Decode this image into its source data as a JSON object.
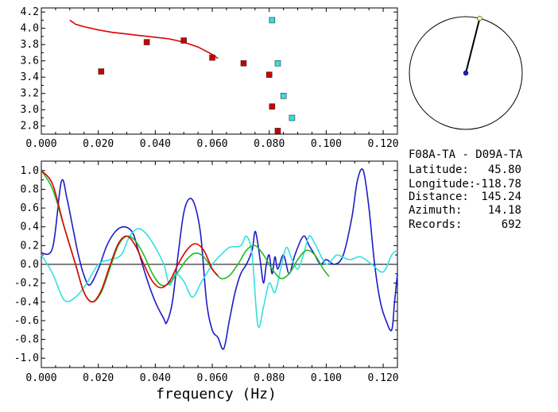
{
  "chart_data": [
    {
      "type": "scatter",
      "xlim": [
        0.0,
        0.125
      ],
      "ylim": [
        2.7,
        4.25
      ],
      "xticks": [
        "0.000",
        "0.020",
        "0.040",
        "0.060",
        "0.080",
        "0.100",
        "0.120"
      ],
      "yticks": [
        "2.8",
        "3.0",
        "3.2",
        "3.4",
        "3.6",
        "3.8",
        "4.0",
        "4.2"
      ],
      "red_points": [
        [
          0.021,
          3.47
        ],
        [
          0.037,
          3.83
        ],
        [
          0.05,
          3.85
        ],
        [
          0.06,
          3.64
        ],
        [
          0.071,
          3.57
        ],
        [
          0.08,
          3.43
        ],
        [
          0.081,
          3.04
        ],
        [
          0.083,
          2.74
        ]
      ],
      "cyan_points": [
        [
          0.081,
          4.1
        ],
        [
          0.083,
          3.57
        ],
        [
          0.085,
          3.17
        ],
        [
          0.088,
          2.9
        ]
      ],
      "curve": [
        [
          0.01,
          4.1
        ],
        [
          0.012,
          4.05
        ],
        [
          0.015,
          4.02
        ],
        [
          0.02,
          3.98
        ],
        [
          0.025,
          3.95
        ],
        [
          0.03,
          3.93
        ],
        [
          0.035,
          3.91
        ],
        [
          0.04,
          3.89
        ],
        [
          0.045,
          3.87
        ],
        [
          0.05,
          3.83
        ],
        [
          0.055,
          3.77
        ],
        [
          0.06,
          3.68
        ],
        [
          0.062,
          3.63
        ]
      ],
      "colors": {
        "red": "#cc0000",
        "cyan": "#33dddd",
        "curve": "#dd0000"
      }
    },
    {
      "type": "line",
      "xlim": [
        0.0,
        0.125
      ],
      "ylim": [
        -1.1,
        1.1
      ],
      "xticks": [
        "0.000",
        "0.020",
        "0.040",
        "0.060",
        "0.080",
        "0.100",
        "0.120"
      ],
      "yticks": [
        "1.0",
        "0.8",
        "0.6",
        "0.4",
        "0.2",
        "0.0",
        "-0.2",
        "-0.4",
        "-0.6",
        "-0.8",
        "-1.0"
      ],
      "xlabel": "frequency (Hz)",
      "zero_line": true,
      "series": [
        {
          "color": "#1c1cc8",
          "values": [
            [
              0.0,
              0.12
            ],
            [
              0.004,
              0.18
            ],
            [
              0.007,
              0.88
            ],
            [
              0.009,
              0.7
            ],
            [
              0.011,
              0.4
            ],
            [
              0.013,
              0.1
            ],
            [
              0.015,
              -0.12
            ],
            [
              0.017,
              -0.22
            ],
            [
              0.02,
              -0.05
            ],
            [
              0.023,
              0.2
            ],
            [
              0.026,
              0.35
            ],
            [
              0.029,
              0.4
            ],
            [
              0.032,
              0.34
            ],
            [
              0.034,
              0.15
            ],
            [
              0.037,
              -0.15
            ],
            [
              0.04,
              -0.4
            ],
            [
              0.043,
              -0.58
            ],
            [
              0.044,
              -0.62
            ],
            [
              0.046,
              -0.4
            ],
            [
              0.048,
              0.1
            ],
            [
              0.05,
              0.55
            ],
            [
              0.052,
              0.7
            ],
            [
              0.054,
              0.62
            ],
            [
              0.056,
              0.3
            ],
            [
              0.058,
              -0.4
            ],
            [
              0.06,
              -0.7
            ],
            [
              0.062,
              -0.78
            ],
            [
              0.064,
              -0.9
            ],
            [
              0.066,
              -0.6
            ],
            [
              0.068,
              -0.3
            ],
            [
              0.07,
              -0.1
            ],
            [
              0.072,
              0.0
            ],
            [
              0.074,
              0.15
            ],
            [
              0.075,
              0.35
            ],
            [
              0.076,
              0.22
            ],
            [
              0.077,
              0.0
            ],
            [
              0.078,
              -0.2
            ],
            [
              0.079,
              0.0
            ],
            [
              0.08,
              0.1
            ],
            [
              0.081,
              -0.1
            ],
            [
              0.082,
              0.08
            ],
            [
              0.083,
              -0.05
            ],
            [
              0.085,
              0.1
            ],
            [
              0.087,
              -0.1
            ],
            [
              0.089,
              0.1
            ],
            [
              0.092,
              0.3
            ],
            [
              0.094,
              0.2
            ],
            [
              0.096,
              0.1
            ],
            [
              0.098,
              0.0
            ],
            [
              0.1,
              0.05
            ],
            [
              0.103,
              0.0
            ],
            [
              0.106,
              0.1
            ],
            [
              0.109,
              0.5
            ],
            [
              0.111,
              0.9
            ],
            [
              0.113,
              1.0
            ],
            [
              0.115,
              0.6
            ],
            [
              0.117,
              0.0
            ],
            [
              0.119,
              -0.4
            ],
            [
              0.121,
              -0.6
            ],
            [
              0.123,
              -0.7
            ],
            [
              0.124,
              -0.4
            ],
            [
              0.125,
              -0.1
            ]
          ]
        },
        {
          "color": "#33e0e0",
          "values": [
            [
              0.0,
              0.1
            ],
            [
              0.004,
              -0.1
            ],
            [
              0.008,
              -0.38
            ],
            [
              0.012,
              -0.35
            ],
            [
              0.016,
              -0.2
            ],
            [
              0.02,
              0.0
            ],
            [
              0.024,
              0.05
            ],
            [
              0.028,
              0.1
            ],
            [
              0.031,
              0.3
            ],
            [
              0.034,
              0.38
            ],
            [
              0.037,
              0.32
            ],
            [
              0.04,
              0.18
            ],
            [
              0.043,
              0.0
            ],
            [
              0.045,
              -0.22
            ],
            [
              0.047,
              -0.1
            ],
            [
              0.05,
              -0.18
            ],
            [
              0.053,
              -0.35
            ],
            [
              0.056,
              -0.2
            ],
            [
              0.058,
              -0.1
            ],
            [
              0.06,
              0.0
            ],
            [
              0.063,
              0.1
            ],
            [
              0.066,
              0.18
            ],
            [
              0.07,
              0.2
            ],
            [
              0.072,
              0.3
            ],
            [
              0.074,
              0.1
            ],
            [
              0.076,
              -0.65
            ],
            [
              0.078,
              -0.45
            ],
            [
              0.08,
              -0.2
            ],
            [
              0.082,
              -0.3
            ],
            [
              0.084,
              -0.05
            ],
            [
              0.086,
              0.18
            ],
            [
              0.088,
              0.05
            ],
            [
              0.09,
              -0.05
            ],
            [
              0.092,
              0.1
            ],
            [
              0.094,
              0.3
            ],
            [
              0.096,
              0.22
            ],
            [
              0.098,
              0.1
            ],
            [
              0.1,
              0.0
            ],
            [
              0.102,
              0.05
            ],
            [
              0.104,
              0.1
            ],
            [
              0.108,
              0.05
            ],
            [
              0.112,
              0.08
            ],
            [
              0.116,
              0.0
            ],
            [
              0.12,
              -0.08
            ],
            [
              0.123,
              0.1
            ],
            [
              0.125,
              0.15
            ]
          ]
        },
        {
          "color": "#22bb22",
          "values": [
            [
              0.0,
              1.0
            ],
            [
              0.004,
              0.8
            ],
            [
              0.008,
              0.4
            ],
            [
              0.012,
              0.0
            ],
            [
              0.015,
              -0.3
            ],
            [
              0.018,
              -0.4
            ],
            [
              0.021,
              -0.3
            ],
            [
              0.024,
              -0.05
            ],
            [
              0.027,
              0.2
            ],
            [
              0.03,
              0.3
            ],
            [
              0.033,
              0.25
            ],
            [
              0.036,
              0.1
            ],
            [
              0.039,
              -0.1
            ],
            [
              0.042,
              -0.22
            ],
            [
              0.045,
              -0.2
            ],
            [
              0.048,
              -0.08
            ],
            [
              0.051,
              0.05
            ],
            [
              0.054,
              0.12
            ],
            [
              0.057,
              0.08
            ],
            [
              0.06,
              -0.05
            ],
            [
              0.063,
              -0.15
            ],
            [
              0.066,
              -0.12
            ],
            [
              0.069,
              0.0
            ],
            [
              0.072,
              0.15
            ],
            [
              0.075,
              0.2
            ],
            [
              0.078,
              0.1
            ],
            [
              0.081,
              -0.05
            ],
            [
              0.084,
              -0.15
            ],
            [
              0.087,
              -0.1
            ],
            [
              0.09,
              0.05
            ],
            [
              0.093,
              0.15
            ],
            [
              0.096,
              0.1
            ],
            [
              0.099,
              -0.05
            ],
            [
              0.101,
              -0.13
            ]
          ]
        },
        {
          "color": "#dd0000",
          "values": [
            [
              0.0,
              1.0
            ],
            [
              0.004,
              0.85
            ],
            [
              0.008,
              0.4
            ],
            [
              0.012,
              0.0
            ],
            [
              0.015,
              -0.3
            ],
            [
              0.018,
              -0.4
            ],
            [
              0.021,
              -0.28
            ],
            [
              0.024,
              -0.02
            ],
            [
              0.027,
              0.22
            ],
            [
              0.03,
              0.3
            ],
            [
              0.033,
              0.2
            ],
            [
              0.036,
              0.0
            ],
            [
              0.039,
              -0.18
            ],
            [
              0.042,
              -0.25
            ],
            [
              0.045,
              -0.18
            ],
            [
              0.048,
              0.0
            ],
            [
              0.051,
              0.15
            ],
            [
              0.054,
              0.22
            ],
            [
              0.057,
              0.15
            ],
            [
              0.06,
              -0.05
            ],
            [
              0.062,
              -0.12
            ]
          ]
        }
      ]
    }
  ],
  "info": {
    "title": "F08A-TA - D09A-TA",
    "latitude_label": "Latitude:",
    "latitude_value": "45.80",
    "longitude_label": "Longitude:",
    "longitude_value": "-118.78",
    "distance_label": "Distance:",
    "distance_value": "145.24",
    "azimuth_label": "Azimuth:",
    "azimuth_value": "14.18",
    "records_label": "Records:",
    "records_value": "692"
  },
  "compass": {
    "azimuth_deg": 14.18
  }
}
